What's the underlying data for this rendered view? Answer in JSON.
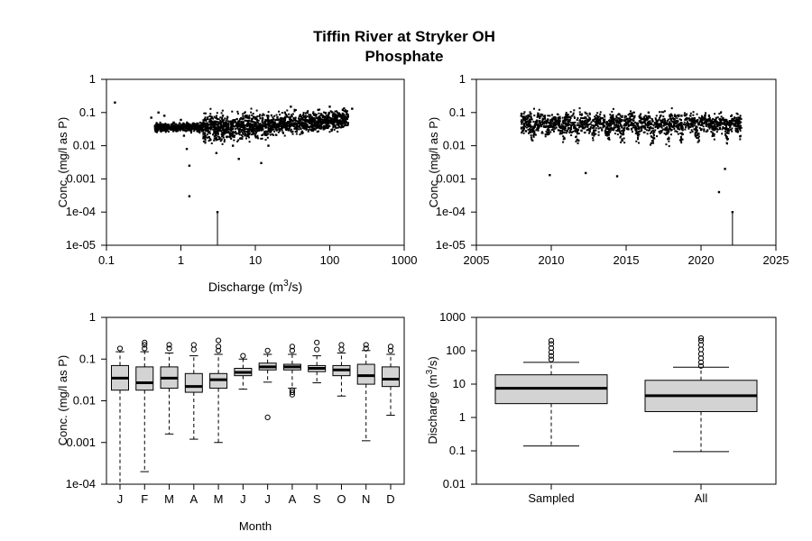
{
  "title_line1": "Tiffin River at Stryker OH",
  "title_line2": "Phosphate",
  "chart_data": [
    {
      "type": "scatter",
      "panel": "conc-vs-discharge",
      "xlabel": "Discharge (m3/s)",
      "ylabel": "Conc. (mg/l as P)",
      "xscale": "log",
      "yscale": "log",
      "xlim": [
        0.1,
        1000
      ],
      "ylim": [
        1e-05,
        1
      ],
      "x_tick_labels": [
        "0.1",
        "1",
        "10",
        "100",
        "1000"
      ],
      "y_tick_labels": [
        "1e-05",
        "1e-04",
        "0.001",
        "0.01",
        "0.1",
        "1"
      ],
      "points": [
        [
          0.13,
          0.2
        ],
        [
          0.4,
          0.07
        ],
        [
          0.5,
          0.1
        ],
        [
          0.6,
          0.08
        ],
        [
          0.8,
          0.05
        ],
        [
          1.0,
          0.06
        ],
        [
          1.1,
          0.02
        ],
        [
          1.2,
          0.008
        ],
        [
          1.3,
          0.0025
        ],
        [
          1.3,
          0.0003
        ],
        [
          1.5,
          0.04
        ],
        [
          2,
          0.03
        ],
        [
          2.5,
          0.015
        ],
        [
          3,
          0.006
        ],
        [
          3.1,
          0.0001
        ],
        [
          4,
          0.05
        ],
        [
          5,
          0.01
        ],
        [
          6,
          0.004
        ],
        [
          8,
          0.02
        ],
        [
          10,
          0.05
        ],
        [
          12,
          0.003
        ],
        [
          15,
          0.01
        ],
        [
          20,
          0.06
        ],
        [
          25,
          0.1
        ],
        [
          30,
          0.15
        ],
        [
          40,
          0.08
        ],
        [
          50,
          0.1
        ],
        [
          70,
          0.12
        ],
        [
          100,
          0.15
        ],
        [
          150,
          0.12
        ],
        [
          200,
          0.13
        ]
      ]
    },
    {
      "type": "scatter",
      "panel": "conc-vs-time",
      "xlabel": "",
      "ylabel": "Conc. (mg/l as P)",
      "yscale": "log",
      "xlim": [
        2005,
        2025
      ],
      "ylim": [
        1e-05,
        1
      ],
      "x_tick_labels": [
        "2005",
        "2010",
        "2015",
        "2020",
        "2025"
      ],
      "y_tick_labels": [
        "1e-05",
        "1e-04",
        "0.001",
        "0.01",
        "0.1",
        "1"
      ],
      "points": [
        [
          2008.0,
          0.08
        ],
        [
          2009.0,
          0.05
        ],
        [
          2009.9,
          0.0013
        ],
        [
          2010.5,
          0.07
        ],
        [
          2012.3,
          0.0015
        ],
        [
          2013.5,
          0.06
        ],
        [
          2014.4,
          0.0012
        ],
        [
          2015.8,
          0.02
        ],
        [
          2016.5,
          0.1
        ],
        [
          2017.5,
          0.04
        ],
        [
          2018.7,
          0.08
        ],
        [
          2020.0,
          0.03
        ],
        [
          2021.2,
          0.0004
        ],
        [
          2021.6,
          0.002
        ],
        [
          2022.1,
          0.0001
        ],
        [
          2022.5,
          0.07
        ]
      ]
    },
    {
      "type": "box",
      "panel": "conc-by-month",
      "xlabel": "Month",
      "ylabel": "Conc. (mg/l as P)",
      "yscale": "log",
      "ylim": [
        0.0001,
        1
      ],
      "y_tick_labels": [
        "1e-04",
        "0.001",
        "0.01",
        "0.1",
        "1"
      ],
      "categories": [
        "J",
        "F",
        "M",
        "A",
        "M",
        "J",
        "J",
        "A",
        "S",
        "O",
        "N",
        "D"
      ],
      "boxes": [
        {
          "min": 0.0001,
          "q1": 0.018,
          "median": 0.035,
          "q3": 0.07,
          "max": 0.15,
          "outliers": [
            0.18
          ]
        },
        {
          "min": 0.0002,
          "q1": 0.018,
          "median": 0.027,
          "q3": 0.065,
          "max": 0.15,
          "outliers": [
            0.18,
            0.22,
            0.25
          ]
        },
        {
          "min": 0.0016,
          "q1": 0.02,
          "median": 0.035,
          "q3": 0.065,
          "max": 0.14,
          "outliers": [
            0.18,
            0.22
          ]
        },
        {
          "min": 0.0012,
          "q1": 0.016,
          "median": 0.022,
          "q3": 0.045,
          "max": 0.12,
          "outliers": [
            0.17,
            0.22
          ]
        },
        {
          "min": 0.001,
          "q1": 0.02,
          "median": 0.032,
          "q3": 0.045,
          "max": 0.13,
          "outliers": [
            0.16,
            0.2,
            0.28
          ]
        },
        {
          "min": 0.019,
          "q1": 0.04,
          "median": 0.048,
          "q3": 0.06,
          "max": 0.1,
          "outliers": [
            0.12
          ]
        },
        {
          "min": 0.028,
          "q1": 0.055,
          "median": 0.065,
          "q3": 0.08,
          "max": 0.13,
          "outliers": [
            0.004,
            0.16
          ]
        },
        {
          "min": 0.02,
          "q1": 0.055,
          "median": 0.065,
          "q3": 0.075,
          "max": 0.13,
          "outliers": [
            0.014,
            0.016,
            0.018,
            0.16,
            0.2
          ]
        },
        {
          "min": 0.027,
          "q1": 0.05,
          "median": 0.06,
          "q3": 0.07,
          "max": 0.12,
          "outliers": [
            0.17,
            0.25
          ]
        },
        {
          "min": 0.013,
          "q1": 0.04,
          "median": 0.055,
          "q3": 0.07,
          "max": 0.14,
          "outliers": [
            0.17,
            0.22
          ]
        },
        {
          "min": 0.0011,
          "q1": 0.025,
          "median": 0.04,
          "q3": 0.075,
          "max": 0.16,
          "outliers": [
            0.18,
            0.22
          ]
        },
        {
          "min": 0.0045,
          "q1": 0.022,
          "median": 0.033,
          "q3": 0.065,
          "max": 0.13,
          "outliers": [
            0.16,
            0.2
          ]
        }
      ]
    },
    {
      "type": "box",
      "panel": "discharge-sampled-vs-all",
      "xlabel": "",
      "ylabel": "Discharge (m3/s)",
      "yscale": "log",
      "ylim": [
        0.01,
        1000
      ],
      "y_tick_labels": [
        "0.01",
        "0.1",
        "1",
        "10",
        "100",
        "1000"
      ],
      "categories": [
        "Sampled",
        "All"
      ],
      "boxes": [
        {
          "min": 0.14,
          "q1": 2.6,
          "median": 7.5,
          "q3": 19,
          "max": 45,
          "outliers": [
            55,
            70,
            90,
            120,
            160,
            200
          ]
        },
        {
          "min": 0.095,
          "q1": 1.5,
          "median": 4.5,
          "q3": 13,
          "max": 32,
          "outliers": [
            35,
            45,
            60,
            80,
            110,
            150,
            200,
            240
          ]
        }
      ]
    }
  ]
}
